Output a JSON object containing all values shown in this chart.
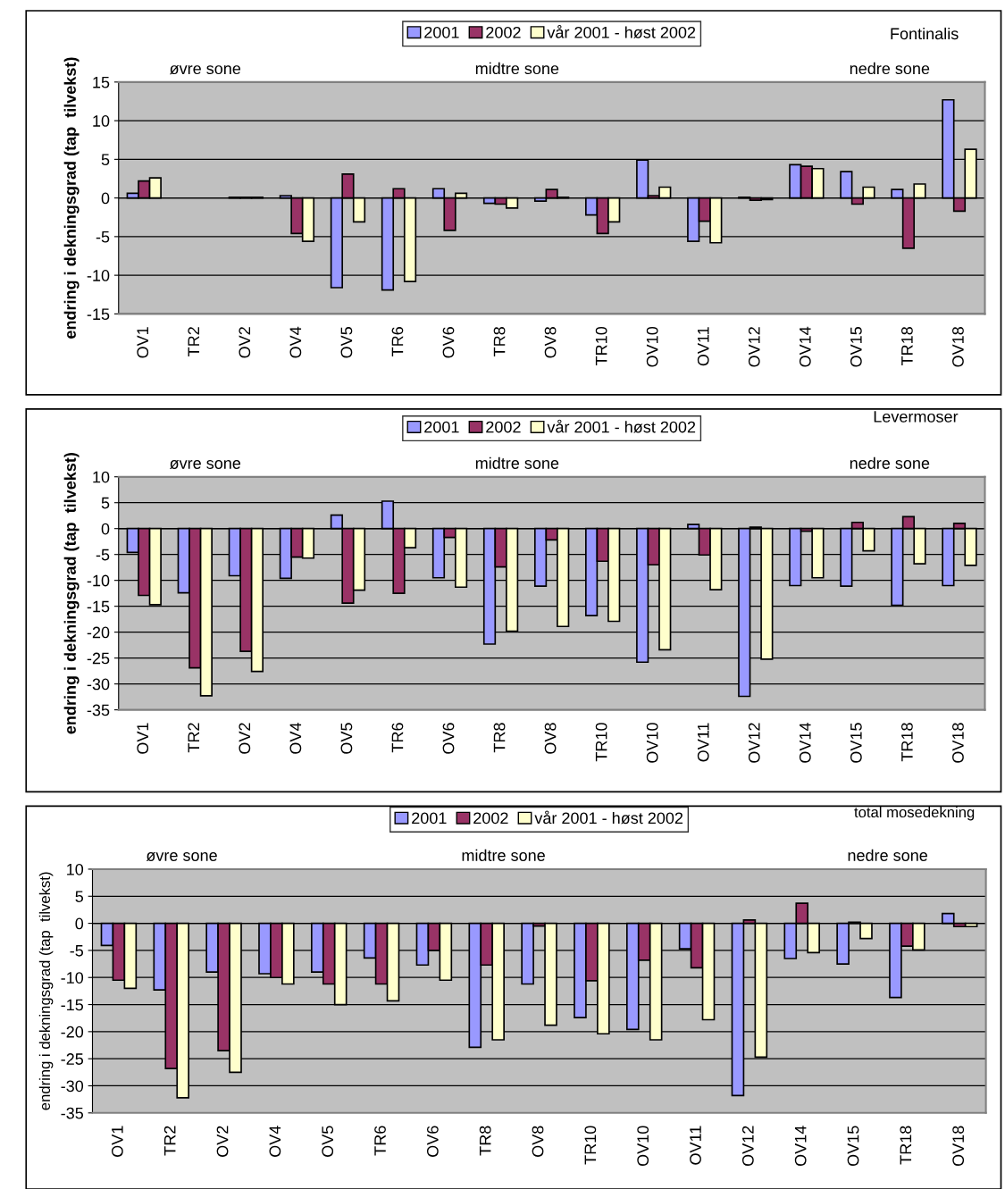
{
  "chart_data": [
    {
      "type": "bar",
      "title": "Fontinalis",
      "ylabel": "endring i dekningsgrad (tap  tilvekst)",
      "annotations": [
        "øvre sone",
        "midtre sone",
        "nedre sone"
      ],
      "categories": [
        "OV1",
        "TR2",
        "OV2",
        "OV4",
        "OV5",
        "TR6",
        "OV6",
        "TR8",
        "OV8",
        "TR10",
        "OV10",
        "OV11",
        "OV12",
        "OV14",
        "OV15",
        "TR18",
        "OV18"
      ],
      "series": [
        {
          "name": "2001",
          "color": "#9999ff",
          "values": [
            0.6,
            null,
            0.1,
            0.3,
            -11.6,
            -11.9,
            1.2,
            -0.7,
            -0.4,
            -2.2,
            4.9,
            -5.6,
            0.1,
            4.3,
            3.4,
            1.1,
            12.7
          ]
        },
        {
          "name": "2002",
          "color": "#993366",
          "values": [
            2.2,
            null,
            0.1,
            -4.6,
            3.1,
            1.2,
            -4.2,
            -0.8,
            1.1,
            -4.6,
            0.3,
            -3.0,
            -0.3,
            4.1,
            -0.8,
            -6.5,
            -1.7
          ]
        },
        {
          "name": "vår 2001 - høst 2002",
          "color": "#ffffcc",
          "values": [
            2.6,
            null,
            0.1,
            -5.6,
            -3.1,
            -10.8,
            0.6,
            -1.3,
            0.1,
            -3.1,
            1.4,
            -5.8,
            -0.2,
            3.8,
            1.4,
            1.8,
            6.3
          ]
        }
      ],
      "ylim": [
        -15,
        15
      ],
      "yticks": [
        -15,
        -10,
        -5,
        0,
        5,
        10,
        15
      ],
      "grid": "y",
      "legend": "top"
    },
    {
      "type": "bar",
      "title": "Levermoser",
      "ylabel": "endring i dekningsgrad (tap  tilvekst)",
      "annotations": [
        "øvre sone",
        "midtre sone",
        "nedre sone"
      ],
      "categories": [
        "OV1",
        "TR2",
        "OV2",
        "OV4",
        "OV5",
        "TR6",
        "OV6",
        "TR8",
        "OV8",
        "TR10",
        "OV10",
        "OV11",
        "OV12",
        "OV14",
        "OV15",
        "TR18",
        "OV18"
      ],
      "series": [
        {
          "name": "2001",
          "color": "#9999ff",
          "values": [
            -4.6,
            -12.4,
            -9.1,
            -9.6,
            2.6,
            5.3,
            -9.5,
            -22.3,
            -11.1,
            -16.8,
            -25.8,
            0.8,
            -32.4,
            -11.0,
            -11.1,
            -14.8,
            -11.0
          ]
        },
        {
          "name": "2002",
          "color": "#993366",
          "values": [
            -12.9,
            -26.9,
            -23.7,
            -5.5,
            -14.4,
            -12.5,
            -1.7,
            -7.4,
            -2.2,
            -6.3,
            -7.0,
            -5.1,
            0.3,
            -0.5,
            1.2,
            2.3,
            1.0
          ]
        },
        {
          "name": "vår 2001 - høst 2002",
          "color": "#ffffcc",
          "values": [
            -14.7,
            -32.3,
            -27.6,
            -5.7,
            -11.9,
            -3.7,
            -11.3,
            -19.8,
            -18.9,
            -17.9,
            -23.4,
            -11.8,
            -25.2,
            -9.5,
            -4.3,
            -6.8,
            -7.1
          ]
        }
      ],
      "ylim": [
        -35,
        10
      ],
      "yticks": [
        -35,
        -30,
        -25,
        -20,
        -15,
        -10,
        -5,
        0,
        5,
        10
      ],
      "grid": "y",
      "legend": "top"
    },
    {
      "type": "bar",
      "title": "total mosedekning",
      "ylabel": "endring i dekningsgrad (tap  tilvekst)",
      "annotations": [
        "øvre sone",
        "midtre sone",
        "nedre sone"
      ],
      "categories": [
        "OV1",
        "TR2",
        "OV2",
        "OV4",
        "OV5",
        "TR6",
        "OV6",
        "TR8",
        "OV8",
        "TR10",
        "OV10",
        "OV11",
        "OV12",
        "OV14",
        "OV15",
        "TR18",
        "OV18"
      ],
      "series": [
        {
          "name": "2001",
          "color": "#9999ff",
          "values": [
            -4.1,
            -12.3,
            -9.0,
            -9.3,
            -9.0,
            -6.4,
            -7.7,
            -22.9,
            -11.2,
            -17.4,
            -19.6,
            -4.7,
            -31.8,
            -6.5,
            -7.5,
            -13.7,
            1.8
          ]
        },
        {
          "name": "2002",
          "color": "#993366",
          "values": [
            -10.5,
            -26.8,
            -23.5,
            -10.0,
            -11.2,
            -11.2,
            -5.0,
            -7.7,
            -0.5,
            -10.6,
            -6.8,
            -8.2,
            0.6,
            3.7,
            0.2,
            -4.2,
            -0.6
          ]
        },
        {
          "name": "vår 2001 - høst 2002",
          "color": "#ffffcc",
          "values": [
            -12.0,
            -32.2,
            -27.5,
            -11.2,
            -15.0,
            -14.3,
            -10.5,
            -21.5,
            -18.8,
            -20.4,
            -21.5,
            -17.8,
            -24.7,
            -5.4,
            -2.8,
            -4.9,
            -0.6
          ]
        }
      ],
      "ylim": [
        -35,
        10
      ],
      "yticks": [
        -35,
        -30,
        -25,
        -20,
        -15,
        -10,
        -5,
        0,
        5,
        10
      ],
      "grid": "y",
      "legend": "top"
    }
  ]
}
